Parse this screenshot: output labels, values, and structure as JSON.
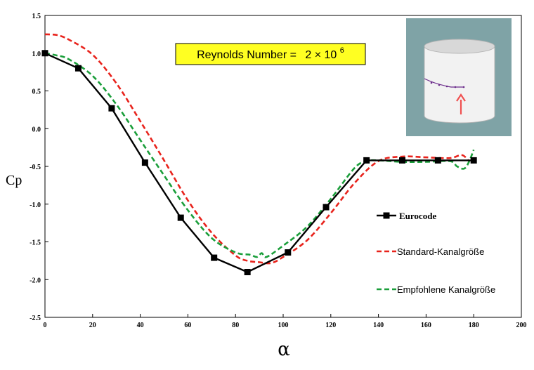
{
  "chart_data": {
    "type": "line",
    "xlabel": "α",
    "ylabel": "Cp",
    "xlim": [
      0,
      200
    ],
    "ylim": [
      -2.5,
      1.5
    ],
    "x_ticks": [
      "0",
      "20",
      "40",
      "60",
      "80",
      "100",
      "120",
      "140",
      "160",
      "180",
      "200"
    ],
    "y_ticks": [
      "1.5",
      "1.0",
      "0.5",
      "0.0",
      "-0.5",
      "-1.0",
      "-1.5",
      "-2.0",
      "-2.5"
    ],
    "annotation": {
      "prefix": "Reynolds Number =",
      "base": "2 × 10",
      "exponent": "6"
    },
    "series": [
      {
        "name": "Eurocode",
        "color": "#000000",
        "style": "solid-square-markers",
        "x": [
          0,
          14,
          28,
          42,
          57,
          71,
          85,
          102,
          118,
          135,
          150,
          165,
          180
        ],
        "y": [
          1.0,
          0.8,
          0.27,
          -0.45,
          -1.18,
          -1.71,
          -1.9,
          -1.64,
          -1.04,
          -0.42,
          -0.42,
          -0.42,
          -0.42
        ]
      },
      {
        "name": "Standard-Kanalgröße",
        "color": "#e8231c",
        "style": "dashed",
        "x": [
          0,
          5,
          10,
          20,
          30,
          40,
          50,
          60,
          70,
          80,
          85,
          90,
          95,
          100,
          110,
          120,
          130,
          140,
          150,
          160,
          170,
          175,
          178
        ],
        "y": [
          1.25,
          1.24,
          1.18,
          0.98,
          0.6,
          0.1,
          -0.42,
          -0.95,
          -1.38,
          -1.68,
          -1.75,
          -1.77,
          -1.78,
          -1.7,
          -1.48,
          -1.12,
          -0.72,
          -0.43,
          -0.37,
          -0.38,
          -0.39,
          -0.35,
          -0.43
        ]
      },
      {
        "name": "Empfohlene Kanalgröße",
        "color": "#1a9e3a",
        "style": "dashed",
        "x": [
          0,
          5,
          10,
          20,
          30,
          40,
          50,
          60,
          70,
          80,
          86,
          89,
          91,
          93,
          100,
          110,
          120,
          130,
          135,
          140,
          150,
          160,
          170,
          173,
          176,
          178,
          180
        ],
        "y": [
          1.0,
          0.97,
          0.92,
          0.7,
          0.32,
          -0.15,
          -0.62,
          -1.08,
          -1.45,
          -1.64,
          -1.67,
          -1.7,
          -1.65,
          -1.7,
          -1.55,
          -1.3,
          -0.93,
          -0.52,
          -0.43,
          -0.42,
          -0.44,
          -0.44,
          -0.43,
          -0.5,
          -0.53,
          -0.44,
          -0.28
        ]
      }
    ]
  }
}
